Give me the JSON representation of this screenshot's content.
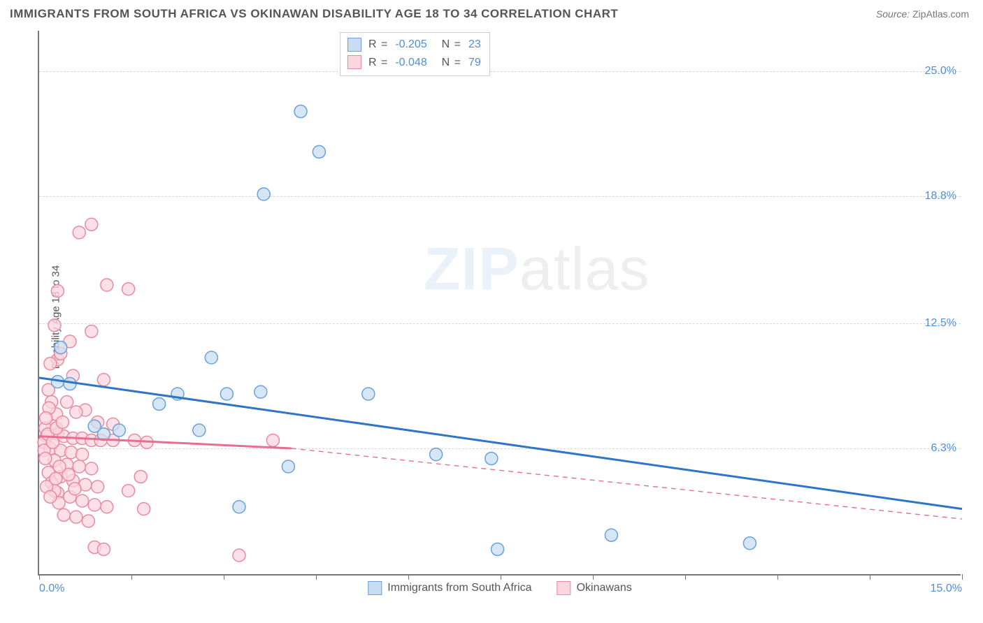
{
  "header": {
    "title": "IMMIGRANTS FROM SOUTH AFRICA VS OKINAWAN DISABILITY AGE 18 TO 34 CORRELATION CHART",
    "source_label": "Source:",
    "source_value": "ZipAtlas.com"
  },
  "watermark": {
    "part1": "ZIP",
    "part2": "atlas"
  },
  "chart": {
    "type": "scatter",
    "ylabel": "Disability Age 18 to 34",
    "xlim": [
      0.0,
      15.0
    ],
    "ylim": [
      0.0,
      27.0
    ],
    "x_ticks": [
      0.0,
      1.5,
      3.0,
      4.5,
      6.0,
      7.5,
      9.0,
      10.5,
      12.0,
      13.5,
      15.0
    ],
    "x_tick_labels": {
      "0": "0.0%",
      "15": "15.0%"
    },
    "y_grid": [
      6.3,
      12.5,
      18.8,
      25.0
    ],
    "y_tick_labels": [
      "6.3%",
      "12.5%",
      "18.8%",
      "25.0%"
    ],
    "background_color": "#ffffff",
    "grid_color": "#d8d8d8",
    "axis_color": "#777777",
    "tick_label_color": "#4f8fd9",
    "marker_radius": 9,
    "marker_stroke_width": 1.5,
    "trend_line_width": 3,
    "series": {
      "blue": {
        "label": "Immigrants from South Africa",
        "fill": "#c9ddf2",
        "stroke": "#6aa0db",
        "line_color": "#2f74c6",
        "R": "-0.205",
        "N": "23",
        "trend": {
          "x1": 0.0,
          "y1": 9.8,
          "x2": 15.0,
          "y2": 3.3,
          "dash": "none"
        },
        "points": [
          [
            4.25,
            23.0
          ],
          [
            4.55,
            21.0
          ],
          [
            3.65,
            18.9
          ],
          [
            2.8,
            10.8
          ],
          [
            2.25,
            9.0
          ],
          [
            3.05,
            9.0
          ],
          [
            3.6,
            9.1
          ],
          [
            5.35,
            9.0
          ],
          [
            2.6,
            7.2
          ],
          [
            1.95,
            8.5
          ],
          [
            1.3,
            7.2
          ],
          [
            1.05,
            7.0
          ],
          [
            4.05,
            5.4
          ],
          [
            3.25,
            3.4
          ],
          [
            6.45,
            6.0
          ],
          [
            7.35,
            5.8
          ],
          [
            7.45,
            1.3
          ],
          [
            9.3,
            2.0
          ],
          [
            11.55,
            1.6
          ],
          [
            0.5,
            9.5
          ],
          [
            0.9,
            7.4
          ],
          [
            0.35,
            11.3
          ],
          [
            0.3,
            9.6
          ]
        ]
      },
      "pink": {
        "label": "Okinawans",
        "fill": "#fbd6df",
        "stroke": "#e98aa3",
        "line_color": "#e46f8f",
        "R": "-0.048",
        "N": "79",
        "trend_solid": {
          "x1": 0.0,
          "y1": 6.9,
          "x2": 4.1,
          "y2": 6.3
        },
        "trend_dash": {
          "x1": 4.1,
          "y1": 6.3,
          "x2": 15.0,
          "y2": 2.8
        },
        "points": [
          [
            0.85,
            17.4
          ],
          [
            0.65,
            17.0
          ],
          [
            1.1,
            14.4
          ],
          [
            1.45,
            14.2
          ],
          [
            0.3,
            14.1
          ],
          [
            0.25,
            12.4
          ],
          [
            0.5,
            11.6
          ],
          [
            0.85,
            12.1
          ],
          [
            0.3,
            10.7
          ],
          [
            0.35,
            11.0
          ],
          [
            0.18,
            10.5
          ],
          [
            0.55,
            9.9
          ],
          [
            1.05,
            9.7
          ],
          [
            1.2,
            7.5
          ],
          [
            0.95,
            7.6
          ],
          [
            0.75,
            8.2
          ],
          [
            0.2,
            8.6
          ],
          [
            0.28,
            8.0
          ],
          [
            0.15,
            9.2
          ],
          [
            0.22,
            7.4
          ],
          [
            0.1,
            7.3
          ],
          [
            0.12,
            6.9
          ],
          [
            0.08,
            6.6
          ],
          [
            0.3,
            7.0
          ],
          [
            0.4,
            6.9
          ],
          [
            0.55,
            6.8
          ],
          [
            0.7,
            6.8
          ],
          [
            0.85,
            6.7
          ],
          [
            1.0,
            6.7
          ],
          [
            1.2,
            6.7
          ],
          [
            1.55,
            6.7
          ],
          [
            1.75,
            6.6
          ],
          [
            0.18,
            6.3
          ],
          [
            0.35,
            6.2
          ],
          [
            0.52,
            6.1
          ],
          [
            0.7,
            6.0
          ],
          [
            0.25,
            5.7
          ],
          [
            0.45,
            5.5
          ],
          [
            0.65,
            5.4
          ],
          [
            0.85,
            5.3
          ],
          [
            0.35,
            4.9
          ],
          [
            0.55,
            4.7
          ],
          [
            0.75,
            4.5
          ],
          [
            0.95,
            4.4
          ],
          [
            0.3,
            4.1
          ],
          [
            0.5,
            3.9
          ],
          [
            0.7,
            3.7
          ],
          [
            0.9,
            3.5
          ],
          [
            1.1,
            3.4
          ],
          [
            0.4,
            3.0
          ],
          [
            0.6,
            2.9
          ],
          [
            0.8,
            2.7
          ],
          [
            1.45,
            4.2
          ],
          [
            1.65,
            4.9
          ],
          [
            1.7,
            3.3
          ],
          [
            0.9,
            1.4
          ],
          [
            1.05,
            1.3
          ],
          [
            3.25,
            1.0
          ],
          [
            3.8,
            6.7
          ],
          [
            0.15,
            5.1
          ],
          [
            0.2,
            4.6
          ],
          [
            0.25,
            4.2
          ],
          [
            0.32,
            3.6
          ],
          [
            0.12,
            4.4
          ],
          [
            0.18,
            3.9
          ],
          [
            0.08,
            6.2
          ],
          [
            0.1,
            5.8
          ],
          [
            0.14,
            7.0
          ],
          [
            0.22,
            6.6
          ],
          [
            0.28,
            7.3
          ],
          [
            0.16,
            8.3
          ],
          [
            0.11,
            7.8
          ],
          [
            0.45,
            8.6
          ],
          [
            0.6,
            8.1
          ],
          [
            0.38,
            7.6
          ],
          [
            0.48,
            5.0
          ],
          [
            0.58,
            4.3
          ],
          [
            0.33,
            5.4
          ],
          [
            0.27,
            4.8
          ]
        ]
      }
    }
  }
}
